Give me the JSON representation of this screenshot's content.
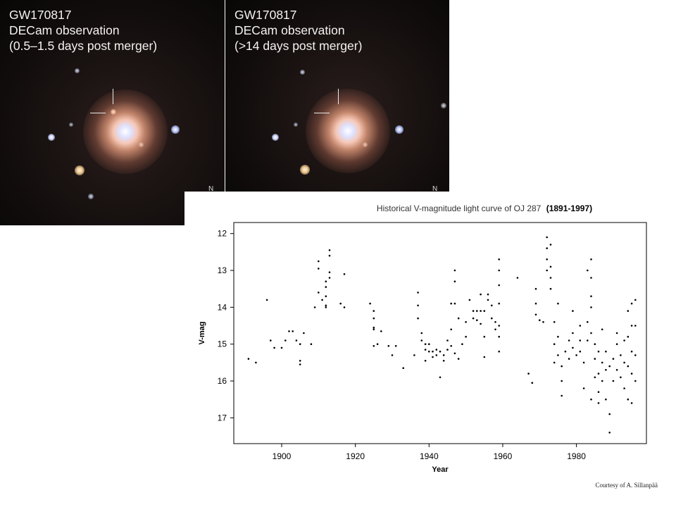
{
  "panels": [
    {
      "caption_lines": [
        "GW170817",
        "DECam observation",
        "(0.5–1.5 days post merger)"
      ],
      "compass": "N"
    },
    {
      "caption_lines": [
        "GW170817",
        "DECam observation",
        "(>14 days post merger)"
      ],
      "compass": "N"
    }
  ],
  "chart_data": {
    "type": "scatter",
    "title": "Historical V-magnitude light curve of OJ 287",
    "title_suffix": "(1891-1997)",
    "xlabel": "Year",
    "ylabel": "V-mag",
    "xlim": [
      1887,
      1999
    ],
    "ylim": [
      17.7,
      11.7
    ],
    "y_inverted": true,
    "xticks": [
      1900,
      1920,
      1940,
      1960,
      1980
    ],
    "yticks": [
      12,
      13,
      14,
      15,
      16,
      17
    ],
    "grid": false,
    "series": [
      {
        "color": "#000000",
        "points": [
          [
            1891,
            15.4
          ],
          [
            1893,
            15.5
          ],
          [
            1896,
            13.8
          ],
          [
            1897,
            14.9
          ],
          [
            1898,
            15.1
          ],
          [
            1900,
            15.1
          ],
          [
            1901,
            14.9
          ],
          [
            1902,
            14.65
          ],
          [
            1903,
            14.65
          ],
          [
            1904,
            14.9
          ],
          [
            1905,
            15.0
          ],
          [
            1905,
            15.45
          ],
          [
            1905,
            15.55
          ],
          [
            1906,
            14.7
          ],
          [
            1908,
            15.0
          ],
          [
            1909,
            14.0
          ],
          [
            1910,
            12.75
          ],
          [
            1910,
            12.95
          ],
          [
            1910,
            13.6
          ],
          [
            1911,
            13.8
          ],
          [
            1912,
            13.3
          ],
          [
            1912,
            13.45
          ],
          [
            1912,
            13.7
          ],
          [
            1912,
            13.95
          ],
          [
            1912,
            14.0
          ],
          [
            1913,
            12.45
          ],
          [
            1913,
            12.6
          ],
          [
            1913,
            13.05
          ],
          [
            1913,
            13.2
          ],
          [
            1916,
            13.9
          ],
          [
            1917,
            14.0
          ],
          [
            1917,
            13.1
          ],
          [
            1924,
            13.9
          ],
          [
            1925,
            14.1
          ],
          [
            1925,
            14.3
          ],
          [
            1925,
            14.55
          ],
          [
            1925,
            14.6
          ],
          [
            1925,
            15.05
          ],
          [
            1926,
            15.0
          ],
          [
            1927,
            14.65
          ],
          [
            1929,
            15.05
          ],
          [
            1930,
            15.3
          ],
          [
            1931,
            15.05
          ],
          [
            1933,
            15.65
          ],
          [
            1936,
            15.3
          ],
          [
            1937,
            13.6
          ],
          [
            1937,
            13.95
          ],
          [
            1937,
            14.3
          ],
          [
            1938,
            14.7
          ],
          [
            1938,
            14.9
          ],
          [
            1939,
            15.0
          ],
          [
            1939,
            15.15
          ],
          [
            1939,
            15.45
          ],
          [
            1940,
            15.2
          ],
          [
            1940,
            15.0
          ],
          [
            1941,
            15.2
          ],
          [
            1941,
            15.35
          ],
          [
            1942,
            15.15
          ],
          [
            1942,
            15.3
          ],
          [
            1943,
            15.9
          ],
          [
            1943,
            15.2
          ],
          [
            1944,
            15.3
          ],
          [
            1944,
            15.45
          ],
          [
            1945,
            14.9
          ],
          [
            1945,
            15.15
          ],
          [
            1946,
            13.9
          ],
          [
            1946,
            14.6
          ],
          [
            1946,
            15.05
          ],
          [
            1947,
            13.0
          ],
          [
            1947,
            13.3
          ],
          [
            1947,
            13.9
          ],
          [
            1947,
            15.25
          ],
          [
            1948,
            14.3
          ],
          [
            1948,
            15.4
          ],
          [
            1949,
            15.0
          ],
          [
            1950,
            14.4
          ],
          [
            1950,
            14.8
          ],
          [
            1951,
            13.8
          ],
          [
            1952,
            14.1
          ],
          [
            1952,
            14.3
          ],
          [
            1953,
            14.1
          ],
          [
            1953,
            14.35
          ],
          [
            1954,
            13.65
          ],
          [
            1954,
            14.1
          ],
          [
            1954,
            14.45
          ],
          [
            1955,
            14.1
          ],
          [
            1955,
            14.8
          ],
          [
            1955,
            15.35
          ],
          [
            1956,
            13.65
          ],
          [
            1956,
            13.8
          ],
          [
            1957,
            13.95
          ],
          [
            1957,
            14.3
          ],
          [
            1958,
            14.4
          ],
          [
            1958,
            14.6
          ],
          [
            1959,
            12.7
          ],
          [
            1959,
            13.0
          ],
          [
            1959,
            13.4
          ],
          [
            1959,
            13.9
          ],
          [
            1959,
            14.5
          ],
          [
            1959,
            14.8
          ],
          [
            1959,
            15.2
          ],
          [
            1964,
            13.2
          ],
          [
            1967,
            15.8
          ],
          [
            1968,
            16.05
          ],
          [
            1969,
            13.5
          ],
          [
            1969,
            13.9
          ],
          [
            1969,
            14.2
          ],
          [
            1970,
            14.35
          ],
          [
            1971,
            14.4
          ],
          [
            1972,
            12.1
          ],
          [
            1972,
            12.4
          ],
          [
            1972,
            12.7
          ],
          [
            1972,
            13.0
          ],
          [
            1973,
            12.3
          ],
          [
            1973,
            12.9
          ],
          [
            1973,
            13.2
          ],
          [
            1973,
            13.5
          ],
          [
            1974,
            14.4
          ],
          [
            1974,
            15.0
          ],
          [
            1974,
            15.5
          ],
          [
            1975,
            13.9
          ],
          [
            1975,
            14.8
          ],
          [
            1975,
            15.3
          ],
          [
            1976,
            15.6
          ],
          [
            1976,
            16.0
          ],
          [
            1976,
            16.4
          ],
          [
            1977,
            15.2
          ],
          [
            1978,
            14.9
          ],
          [
            1978,
            15.4
          ],
          [
            1979,
            14.1
          ],
          [
            1979,
            14.7
          ],
          [
            1979,
            15.1
          ],
          [
            1980,
            15.3
          ],
          [
            1981,
            14.5
          ],
          [
            1981,
            14.9
          ],
          [
            1981,
            15.2
          ],
          [
            1982,
            15.5
          ],
          [
            1982,
            16.2
          ],
          [
            1983,
            14.4
          ],
          [
            1983,
            14.9
          ],
          [
            1983,
            13.0
          ],
          [
            1984,
            12.7
          ],
          [
            1984,
            13.2
          ],
          [
            1984,
            13.7
          ],
          [
            1984,
            14.0
          ],
          [
            1984,
            14.7
          ],
          [
            1984,
            16.5
          ],
          [
            1985,
            15.0
          ],
          [
            1985,
            15.4
          ],
          [
            1985,
            15.9
          ],
          [
            1986,
            15.2
          ],
          [
            1986,
            15.8
          ],
          [
            1986,
            16.3
          ],
          [
            1986,
            16.6
          ],
          [
            1987,
            14.6
          ],
          [
            1987,
            15.5
          ],
          [
            1987,
            16.0
          ],
          [
            1988,
            15.2
          ],
          [
            1988,
            15.7
          ],
          [
            1988,
            16.5
          ],
          [
            1989,
            16.9
          ],
          [
            1989,
            17.4
          ],
          [
            1989,
            15.6
          ],
          [
            1990,
            15.4
          ],
          [
            1990,
            16.0
          ],
          [
            1991,
            15.0
          ],
          [
            1991,
            15.7
          ],
          [
            1991,
            14.7
          ],
          [
            1992,
            15.3
          ],
          [
            1992,
            15.9
          ],
          [
            1993,
            14.9
          ],
          [
            1993,
            15.5
          ],
          [
            1993,
            16.2
          ],
          [
            1994,
            14.1
          ],
          [
            1994,
            14.8
          ],
          [
            1994,
            15.6
          ],
          [
            1994,
            16.5
          ],
          [
            1995,
            13.9
          ],
          [
            1995,
            14.5
          ],
          [
            1995,
            15.2
          ],
          [
            1995,
            15.8
          ],
          [
            1995,
            16.6
          ],
          [
            1996,
            13.8
          ],
          [
            1996,
            14.5
          ],
          [
            1996,
            15.3
          ],
          [
            1996,
            16.0
          ]
        ]
      }
    ]
  },
  "credit": "Courtesy of A. Sillanpää"
}
